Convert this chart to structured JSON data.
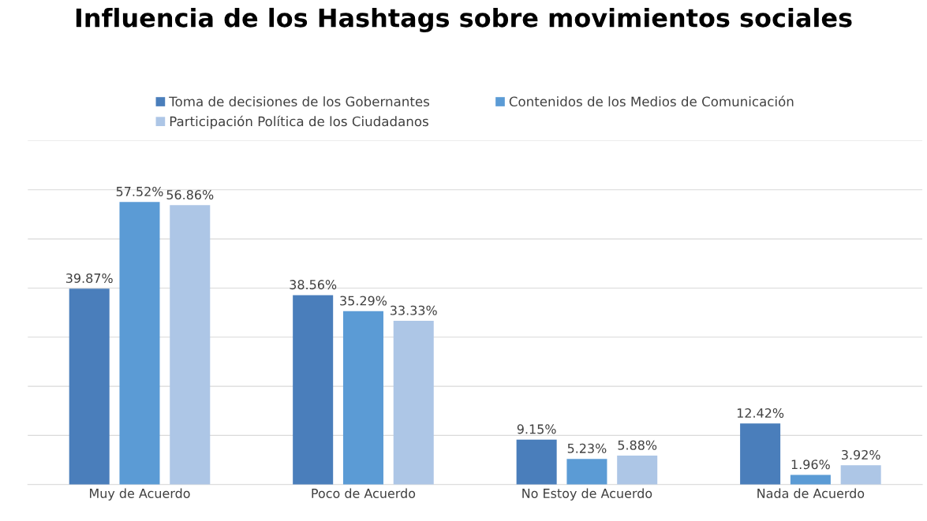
{
  "chart_data": {
    "type": "bar",
    "title": "Influencia de los Hashtags sobre movimientos sociales",
    "categories": [
      "Muy de Acuerdo",
      "Poco de Acuerdo",
      "No Estoy de Acuerdo",
      "Nada de Acuerdo"
    ],
    "series": [
      {
        "name": "Toma de decisiones de los Gobernantes",
        "color": "#4a7ebb",
        "values": [
          39.87,
          38.56,
          9.15,
          12.42
        ],
        "value_labels": [
          "39.87%",
          "38.56%",
          "9.15%",
          "12.42%"
        ]
      },
      {
        "name": "Contenidos de los Medios de Comunicación",
        "color": "#5b9bd5",
        "values": [
          57.52,
          35.29,
          5.23,
          1.96
        ],
        "value_labels": [
          "57.52%",
          "35.29%",
          "5.23%",
          "1.96%"
        ]
      },
      {
        "name": "Participación Política de los Ciudadanos",
        "color": "#adc6e6",
        "values": [
          56.86,
          33.33,
          5.88,
          3.92
        ],
        "value_labels": [
          "56.86%",
          "33.33%",
          "5.88%",
          "3.92%"
        ]
      }
    ],
    "ylim": [
      0,
      70
    ],
    "yticks": [
      {
        "value": 0,
        "label": null
      },
      {
        "value": 10,
        "label": null
      },
      {
        "value": 20,
        "label": null
      },
      {
        "value": 30,
        "label": null
      },
      {
        "value": 40,
        "label": null
      },
      {
        "value": 50,
        "label": null
      },
      {
        "value": 60,
        "label": null
      },
      {
        "value": 70,
        "label": null
      }
    ],
    "grid": "y",
    "legend": "top",
    "tick_labels": "x"
  }
}
